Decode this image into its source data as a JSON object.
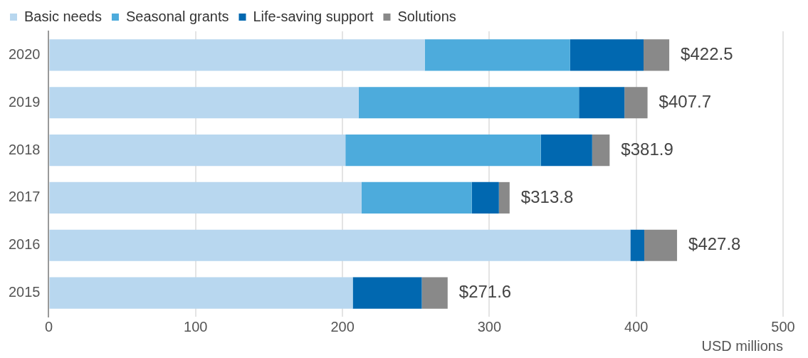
{
  "chart_data": {
    "type": "bar",
    "orientation": "horizontal",
    "stacked": true,
    "xlabel": "USD millions",
    "categories": [
      "2020",
      "2019",
      "2018",
      "2017",
      "2016",
      "2015"
    ],
    "series": [
      {
        "name": "Basic needs",
        "color": "#b8d7ef",
        "values": [
          256,
          211,
          202,
          213,
          396,
          207
        ]
      },
      {
        "name": "Seasonal grants",
        "color": "#4dabdc",
        "values": [
          99,
          150,
          133,
          75,
          null,
          null
        ]
      },
      {
        "name": "Life-saving support",
        "color": "#0168b0",
        "values": [
          50,
          31,
          35,
          18.5,
          9.5,
          47
        ]
      },
      {
        "name": "Solutions",
        "color": "#898989",
        "values": [
          17.5,
          15.7,
          11.9,
          7.3,
          22.3,
          17.6
        ]
      }
    ],
    "totals": [
      "$422.5",
      "$407.7",
      "$381.9",
      "$313.8",
      "$427.8",
      "$271.6"
    ],
    "xlim": [
      0,
      500
    ],
    "xticks": [
      0,
      100,
      200,
      300,
      400,
      500
    ],
    "grid": "x",
    "legend": "top left"
  }
}
